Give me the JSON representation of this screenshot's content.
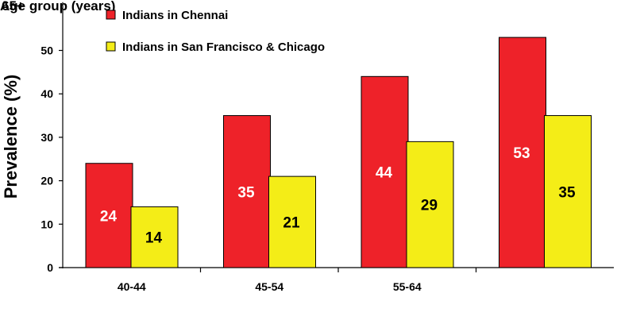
{
  "chart_data": {
    "type": "bar",
    "categories": [
      "40-44",
      "45-54",
      "55-64",
      ""
    ],
    "series": [
      {
        "name": "Indians in Chennai",
        "color": "#ee2229",
        "values": [
          24,
          35,
          44,
          53
        ],
        "label_color": "#ffffff"
      },
      {
        "name": "Indians in San Francisco & Chicago",
        "color": "#f4ed17",
        "values": [
          14,
          21,
          29,
          35
        ],
        "label_color": "#000000"
      }
    ],
    "ylabel": "Prevalence (%)",
    "top_labels": [
      "Age group (years)",
      "65+"
    ],
    "ylim": [
      0,
      60
    ],
    "yticks": [
      0,
      10,
      20,
      30,
      40,
      50
    ],
    "legend_position": "top-left",
    "grid": false
  }
}
